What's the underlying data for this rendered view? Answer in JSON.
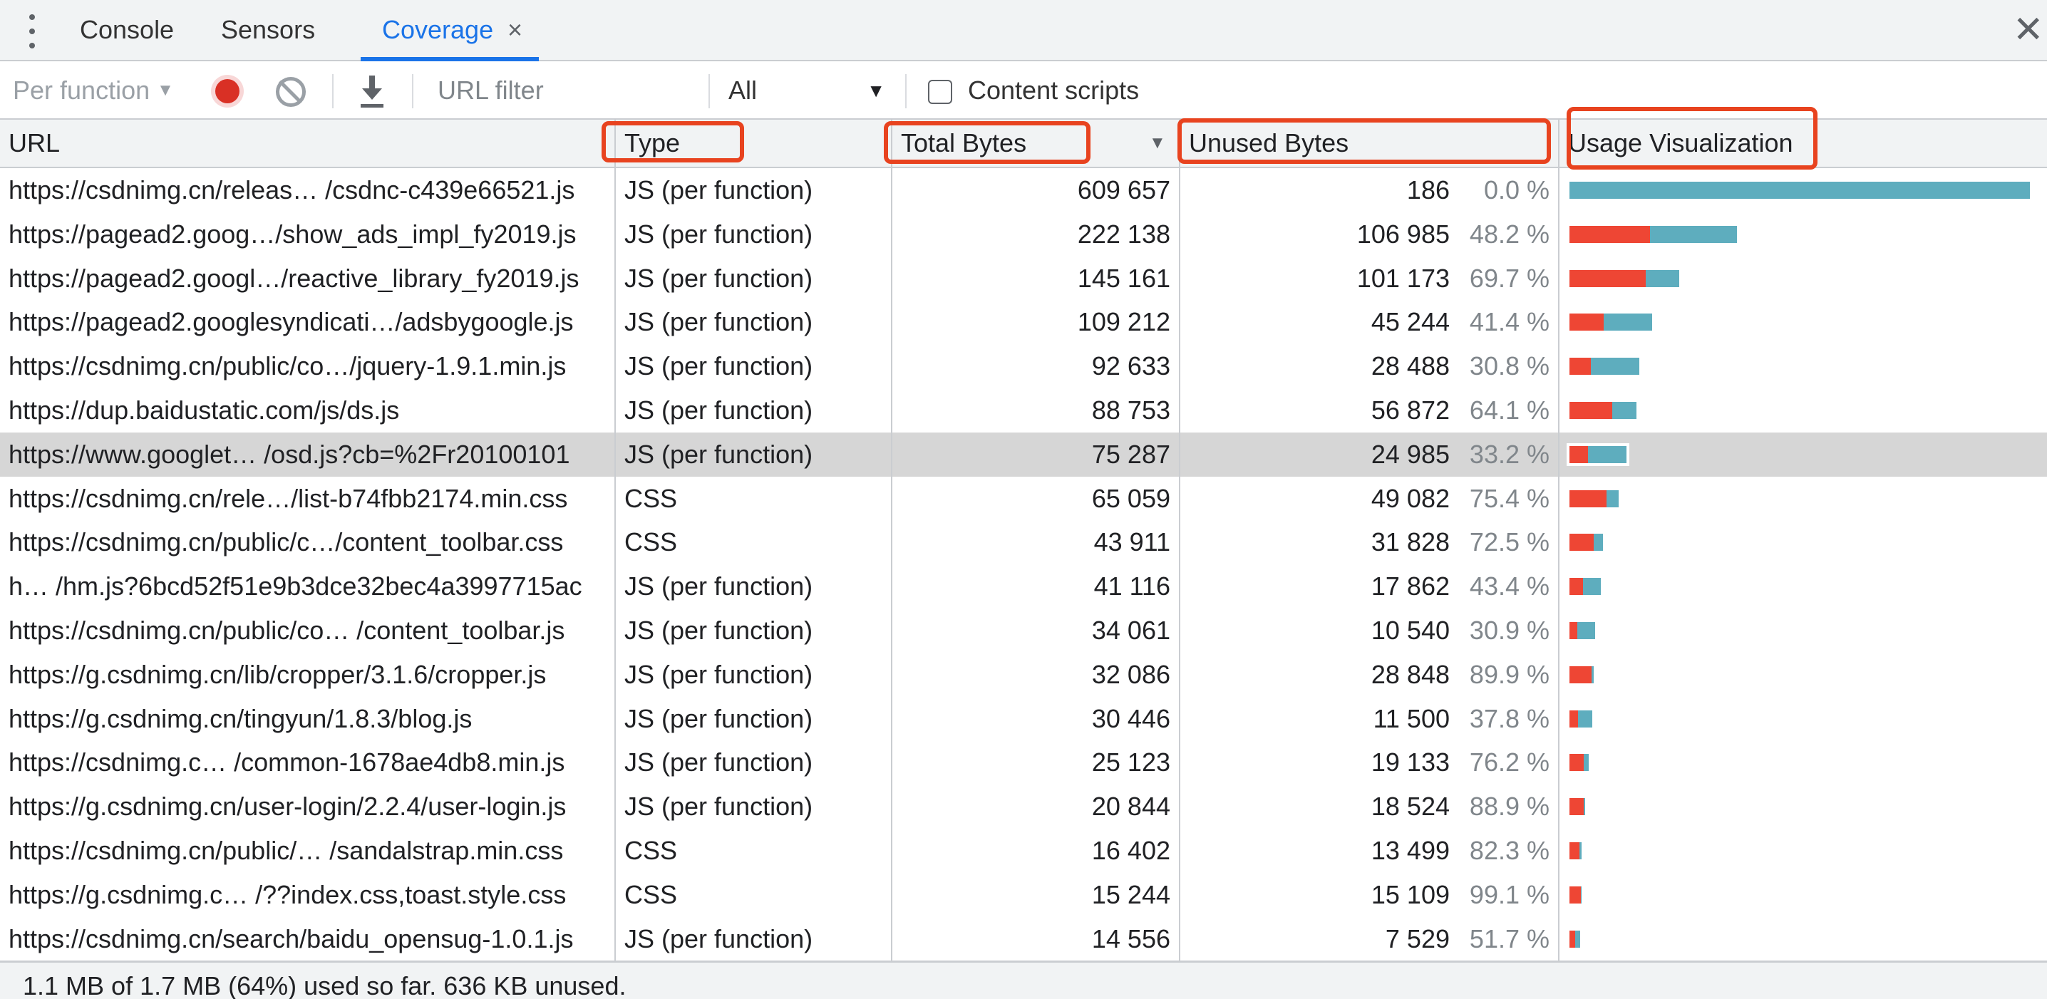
{
  "tabs": {
    "console": "Console",
    "sensors": "Sensors",
    "coverage": "Coverage",
    "close_glyph": "×"
  },
  "panel_close_glyph": "✕",
  "toolbar": {
    "mode_label": "Per function",
    "url_filter_placeholder": "URL filter",
    "type_select_value": "All",
    "content_scripts_label": "Content scripts"
  },
  "columns": {
    "url": "URL",
    "type": "Type",
    "total_bytes": "Total Bytes",
    "unused_bytes": "Unused Bytes",
    "usage_visualization": "Usage Visualization"
  },
  "colors": {
    "unused_bar": "#ee4634",
    "used_bar": "#5eadbe",
    "active_tab": "#1a73e8",
    "highlight_box": "#e8431f"
  },
  "rows": [
    {
      "url": "https://csdnimg.cn/releas… /csdnc-c439e66521.js",
      "type": "JS (per function)",
      "total": "609 657",
      "unused": "186",
      "pct": "0.0 %",
      "total_n": 609657,
      "unused_n": 186
    },
    {
      "url": "https://pagead2.goog…/show_ads_impl_fy2019.js",
      "type": "JS (per function)",
      "total": "222 138",
      "unused": "106 985",
      "pct": "48.2 %",
      "total_n": 222138,
      "unused_n": 106985
    },
    {
      "url": "https://pagead2.googl…/reactive_library_fy2019.js",
      "type": "JS (per function)",
      "total": "145 161",
      "unused": "101 173",
      "pct": "69.7 %",
      "total_n": 145161,
      "unused_n": 101173
    },
    {
      "url": "https://pagead2.googlesyndicati…/adsbygoogle.js",
      "type": "JS (per function)",
      "total": "109 212",
      "unused": "45 244",
      "pct": "41.4 %",
      "total_n": 109212,
      "unused_n": 45244
    },
    {
      "url": "https://csdnimg.cn/public/co…/jquery-1.9.1.min.js",
      "type": "JS (per function)",
      "total": "92 633",
      "unused": "28 488",
      "pct": "30.8 %",
      "total_n": 92633,
      "unused_n": 28488
    },
    {
      "url": "https://dup.baidustatic.com/js/ds.js",
      "type": "JS (per function)",
      "total": "88 753",
      "unused": "56 872",
      "pct": "64.1 %",
      "total_n": 88753,
      "unused_n": 56872
    },
    {
      "url": "https://www.googlet… /osd.js?cb=%2Fr20100101",
      "type": "JS (per function)",
      "total": "75 287",
      "unused": "24 985",
      "pct": "33.2 %",
      "total_n": 75287,
      "unused_n": 24985,
      "selected": true
    },
    {
      "url": "https://csdnimg.cn/rele…/list-b74fbb2174.min.css",
      "type": "CSS",
      "total": "65 059",
      "unused": "49 082",
      "pct": "75.4 %",
      "total_n": 65059,
      "unused_n": 49082
    },
    {
      "url": "https://csdnimg.cn/public/c…/content_toolbar.css",
      "type": "CSS",
      "total": "43 911",
      "unused": "31 828",
      "pct": "72.5 %",
      "total_n": 43911,
      "unused_n": 31828
    },
    {
      "url": "h… /hm.js?6bcd52f51e9b3dce32bec4a3997715ac",
      "type": "JS (per function)",
      "total": "41 116",
      "unused": "17 862",
      "pct": "43.4 %",
      "total_n": 41116,
      "unused_n": 17862
    },
    {
      "url": "https://csdnimg.cn/public/co… /content_toolbar.js",
      "type": "JS (per function)",
      "total": "34 061",
      "unused": "10 540",
      "pct": "30.9 %",
      "total_n": 34061,
      "unused_n": 10540
    },
    {
      "url": "https://g.csdnimg.cn/lib/cropper/3.1.6/cropper.js",
      "type": "JS (per function)",
      "total": "32 086",
      "unused": "28 848",
      "pct": "89.9 %",
      "total_n": 32086,
      "unused_n": 28848
    },
    {
      "url": "https://g.csdnimg.cn/tingyun/1.8.3/blog.js",
      "type": "JS (per function)",
      "total": "30 446",
      "unused": "11 500",
      "pct": "37.8 %",
      "total_n": 30446,
      "unused_n": 11500
    },
    {
      "url": "https://csdnimg.c… /common-1678ae4db8.min.js",
      "type": "JS (per function)",
      "total": "25 123",
      "unused": "19 133",
      "pct": "76.2 %",
      "total_n": 25123,
      "unused_n": 19133
    },
    {
      "url": "https://g.csdnimg.cn/user-login/2.2.4/user-login.js",
      "type": "JS (per function)",
      "total": "20 844",
      "unused": "18 524",
      "pct": "88.9 %",
      "total_n": 20844,
      "unused_n": 18524
    },
    {
      "url": "https://csdnimg.cn/public/… /sandalstrap.min.css",
      "type": "CSS",
      "total": "16 402",
      "unused": "13 499",
      "pct": "82.3 %",
      "total_n": 16402,
      "unused_n": 13499
    },
    {
      "url": "https://g.csdnimg.c… /??index.css,toast.style.css",
      "type": "CSS",
      "total": "15 244",
      "unused": "15 109",
      "pct": "99.1 %",
      "total_n": 15244,
      "unused_n": 15109
    },
    {
      "url": "https://csdnimg.cn/search/baidu_opensug-1.0.1.js",
      "type": "JS (per function)",
      "total": "14 556",
      "unused": "7 529",
      "pct": "51.7 %",
      "total_n": 14556,
      "unused_n": 7529
    }
  ],
  "footer_text": "1.1 MB of 1.7 MB (64%) used so far. 636 KB unused."
}
